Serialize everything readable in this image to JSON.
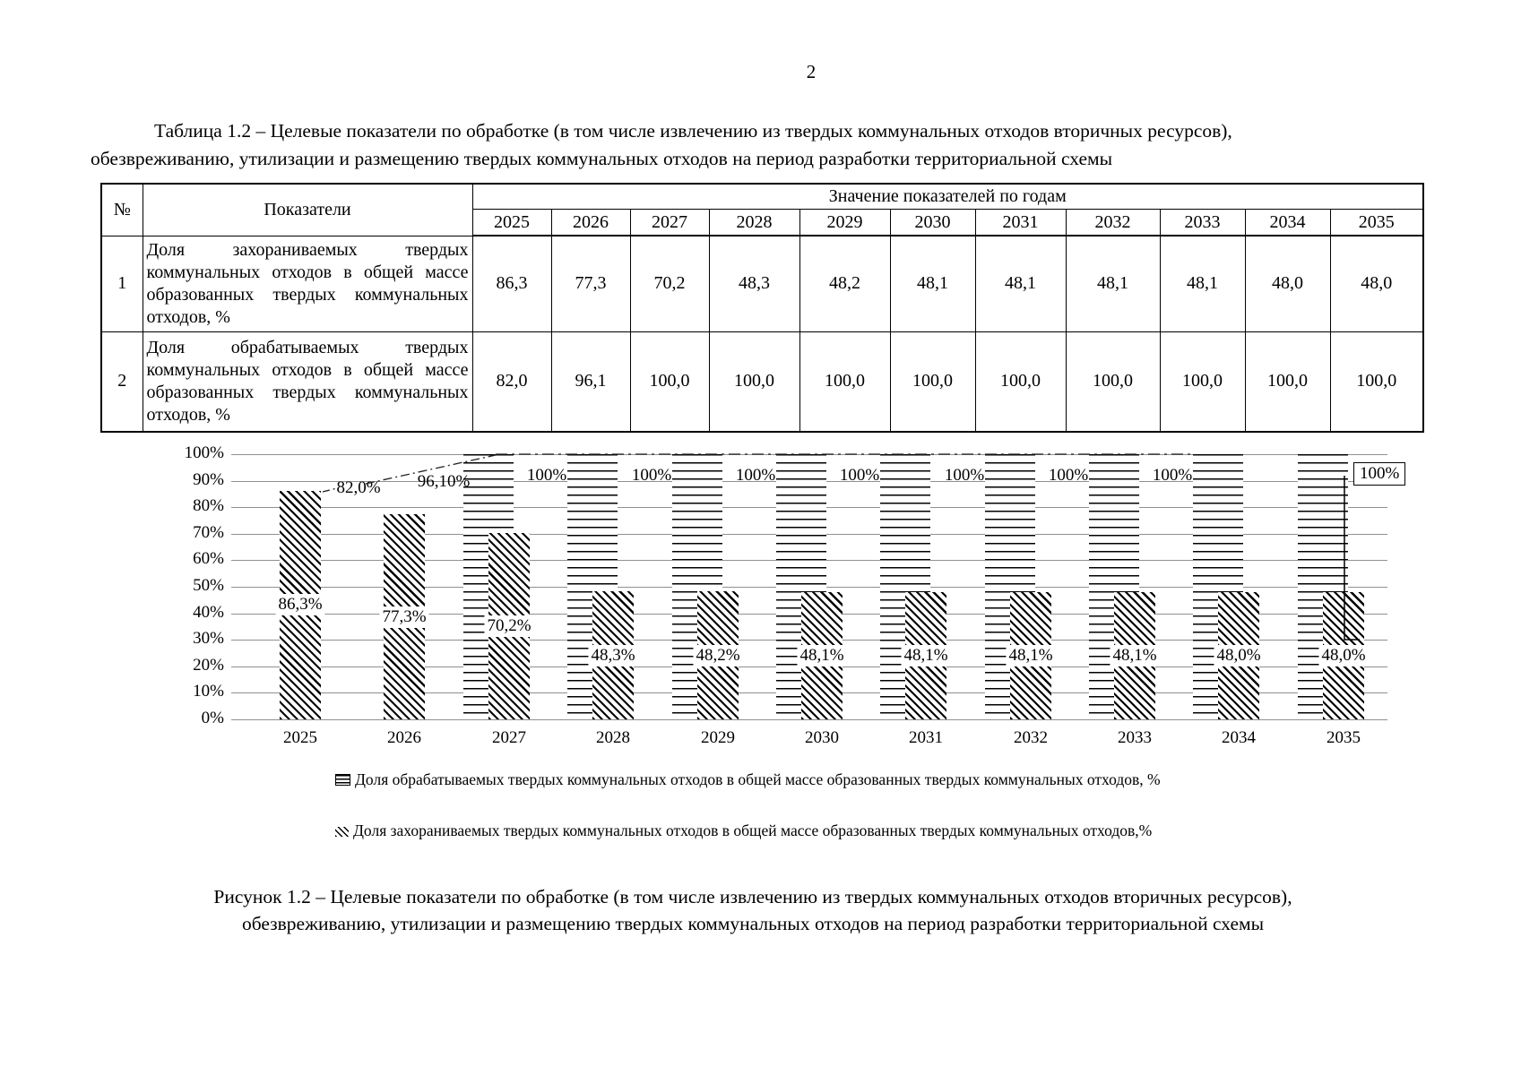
{
  "page": {
    "number": "2"
  },
  "title": {
    "lines": [
      "Таблица 1.2 – Целевые показатели по обработке (в том числе извлечению из твердых коммунальных отходов вторичных ресурсов),",
      "обезвреживанию, утилизации и размещению твердых коммунальных отходов на период разработки территориальной схемы"
    ]
  },
  "table": {
    "col_num": "№",
    "col_indicator": "Показатели",
    "col_values_header": "Значение показателей по годам",
    "years": [
      "2025",
      "2026",
      "2027",
      "2028",
      "2029",
      "2030",
      "2031",
      "2032",
      "2033",
      "2034",
      "2035"
    ],
    "rows": [
      {
        "num": "1",
        "indicator": "Доля захораниваемых твердых коммунальных отходов в общей массе образованных твердых коммунальных отходов, %",
        "values": [
          "86,3",
          "77,3",
          "70,2",
          "48,3",
          "48,2",
          "48,1",
          "48,1",
          "48,1",
          "48,1",
          "48,0",
          "48,0"
        ]
      },
      {
        "num": "2",
        "indicator": "Доля обрабатываемых твердых коммунальных отходов в общей массе образованных твердых коммунальных отходов, %",
        "values": [
          "82,0",
          "96,1",
          "100,0",
          "100,0",
          "100,0",
          "100,0",
          "100,0",
          "100,0",
          "100,0",
          "100,0",
          "100,0"
        ]
      }
    ]
  },
  "chart_data": {
    "type": "bar",
    "categories": [
      "2025",
      "2026",
      "2027",
      "2028",
      "2029",
      "2030",
      "2031",
      "2032",
      "2033",
      "2034",
      "2035"
    ],
    "ylabel": "",
    "ylim": [
      0,
      100
    ],
    "ytick_labels": [
      "0%",
      "10%",
      "20%",
      "30%",
      "40%",
      "50%",
      "60%",
      "70%",
      "80%",
      "90%",
      "100%"
    ],
    "grid": "horizontal",
    "series": [
      {
        "name": "Доля обрабатываемых твердых коммунальных отходов в общей массе образованных твердых коммунальных отходов, %",
        "pattern": "horizontal-lines",
        "values": [
          82.0,
          96.1,
          100.0,
          100.0,
          100.0,
          100.0,
          100.0,
          100.0,
          100.0,
          100.0,
          100.0
        ],
        "labels": [
          "82,0%",
          "96,10%",
          "100%",
          "100%",
          "100%",
          "100%",
          "100%",
          "100%",
          "100%",
          "100%",
          "100%"
        ]
      },
      {
        "name": "Доля захораниваемых твердых коммунальных отходов в общей массе образованных твердых коммунальных отходов,%",
        "pattern": "diagonal-hatch",
        "values": [
          86.3,
          77.3,
          70.2,
          48.3,
          48.2,
          48.1,
          48.1,
          48.1,
          48.1,
          48.0,
          48.0
        ],
        "labels": [
          "86,3%",
          "77,3%",
          "70,2%",
          "48,3%",
          "48,2%",
          "48,1%",
          "48,1%",
          "48,1%",
          "48,1%",
          "48,0%",
          "48,0%"
        ]
      }
    ],
    "legend_position": "bottom"
  },
  "legend": {
    "items": [
      "Доля обрабатываемых твердых коммунальных отходов в общей массе образованных твердых коммунальных отходов, %",
      "Доля захораниваемых твердых коммунальных отходов в общей массе образованных твердых коммунальных отходов,%"
    ]
  },
  "caption": {
    "lines": [
      "Рисунок 1.2 – Целевые показатели по обработке (в том числе извлечению из твердых коммунальных отходов вторичных ресурсов),",
      "обезвреживанию, утилизации и размещению твердых коммунальных отходов на период разработки территориальной схемы"
    ]
  }
}
